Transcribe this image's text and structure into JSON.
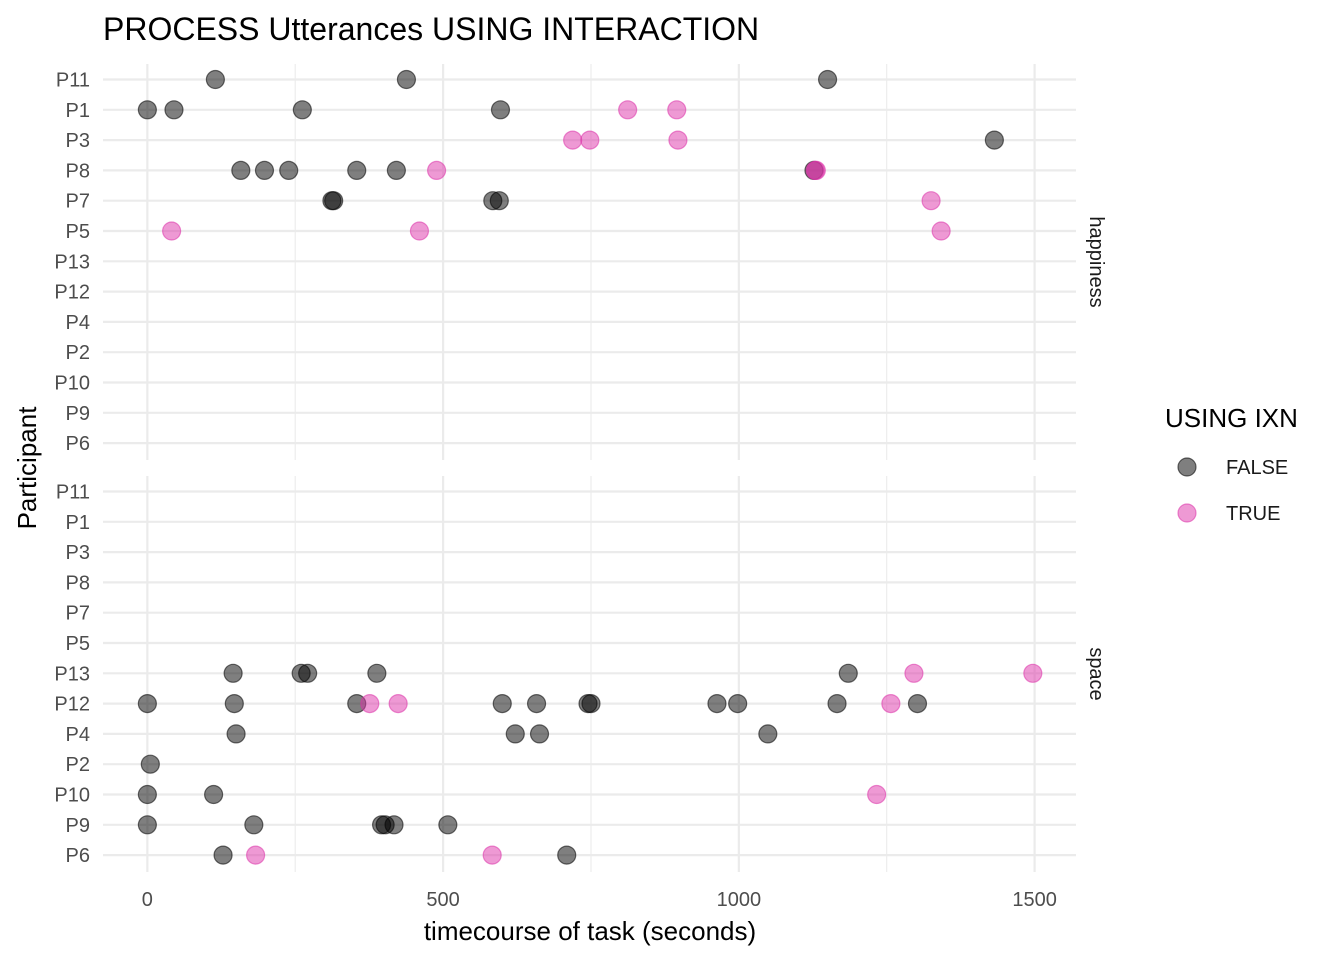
{
  "chart_data": {
    "type": "scatter",
    "title": "PROCESS Utterances USING INTERACTION",
    "xlabel": "timecourse of task (seconds)",
    "ylabel": "Participant",
    "xlim": [
      -75,
      1570
    ],
    "x_ticks": [
      0,
      500,
      1000,
      1500
    ],
    "participants": [
      "P11",
      "P1",
      "P3",
      "P8",
      "P7",
      "P5",
      "P13",
      "P12",
      "P4",
      "P2",
      "P10",
      "P9",
      "P6"
    ],
    "grid": true,
    "legend": {
      "title": "USING IXN",
      "placement": "right",
      "entries": [
        {
          "label": "FALSE",
          "color": "#000000"
        },
        {
          "label": "TRUE",
          "color": "#dd33aa"
        }
      ]
    },
    "point_opacity": 0.5,
    "facets": [
      {
        "label": "happiness",
        "points": [
          {
            "p": "P11",
            "x": 115,
            "ixn": false
          },
          {
            "p": "P11",
            "x": 438,
            "ixn": false
          },
          {
            "p": "P11",
            "x": 1150,
            "ixn": false
          },
          {
            "p": "P1",
            "x": 0,
            "ixn": false
          },
          {
            "p": "P1",
            "x": 45,
            "ixn": false
          },
          {
            "p": "P1",
            "x": 262,
            "ixn": false
          },
          {
            "p": "P1",
            "x": 597,
            "ixn": false
          },
          {
            "p": "P1",
            "x": 812,
            "ixn": true
          },
          {
            "p": "P1",
            "x": 895,
            "ixn": true
          },
          {
            "p": "P3",
            "x": 719,
            "ixn": true
          },
          {
            "p": "P3",
            "x": 748,
            "ixn": true
          },
          {
            "p": "P3",
            "x": 897,
            "ixn": true
          },
          {
            "p": "P3",
            "x": 1432,
            "ixn": false
          },
          {
            "p": "P8",
            "x": 158,
            "ixn": false
          },
          {
            "p": "P8",
            "x": 198,
            "ixn": false
          },
          {
            "p": "P8",
            "x": 239,
            "ixn": false
          },
          {
            "p": "P8",
            "x": 354,
            "ixn": false
          },
          {
            "p": "P8",
            "x": 421,
            "ixn": false
          },
          {
            "p": "P8",
            "x": 489,
            "ixn": true
          },
          {
            "p": "P8",
            "x": 1127,
            "ixn": false
          },
          {
            "p": "P8",
            "x": 1129,
            "ixn": true
          },
          {
            "p": "P8",
            "x": 1131,
            "ixn": true
          },
          {
            "p": "P7",
            "x": 312,
            "ixn": false
          },
          {
            "p": "P7",
            "x": 315,
            "ixn": false
          },
          {
            "p": "P7",
            "x": 584,
            "ixn": false
          },
          {
            "p": "P7",
            "x": 595,
            "ixn": false
          },
          {
            "p": "P7",
            "x": 1325,
            "ixn": true
          },
          {
            "p": "P5",
            "x": 41,
            "ixn": true
          },
          {
            "p": "P5",
            "x": 460,
            "ixn": true
          },
          {
            "p": "P5",
            "x": 1342,
            "ixn": true
          }
        ]
      },
      {
        "label": "space",
        "points": [
          {
            "p": "P13",
            "x": 145,
            "ixn": false
          },
          {
            "p": "P13",
            "x": 260,
            "ixn": false
          },
          {
            "p": "P13",
            "x": 271,
            "ixn": false
          },
          {
            "p": "P13",
            "x": 388,
            "ixn": false
          },
          {
            "p": "P13",
            "x": 1185,
            "ixn": false
          },
          {
            "p": "P13",
            "x": 1296,
            "ixn": true
          },
          {
            "p": "P13",
            "x": 1497,
            "ixn": true
          },
          {
            "p": "P12",
            "x": 0,
            "ixn": false
          },
          {
            "p": "P12",
            "x": 147,
            "ixn": false
          },
          {
            "p": "P12",
            "x": 354,
            "ixn": false
          },
          {
            "p": "P12",
            "x": 376,
            "ixn": true
          },
          {
            "p": "P12",
            "x": 424,
            "ixn": true
          },
          {
            "p": "P12",
            "x": 600,
            "ixn": false
          },
          {
            "p": "P12",
            "x": 658,
            "ixn": false
          },
          {
            "p": "P12",
            "x": 745,
            "ixn": false
          },
          {
            "p": "P12",
            "x": 750,
            "ixn": false
          },
          {
            "p": "P12",
            "x": 963,
            "ixn": false
          },
          {
            "p": "P12",
            "x": 998,
            "ixn": false
          },
          {
            "p": "P12",
            "x": 1166,
            "ixn": false
          },
          {
            "p": "P12",
            "x": 1257,
            "ixn": true
          },
          {
            "p": "P12",
            "x": 1302,
            "ixn": false
          },
          {
            "p": "P4",
            "x": 150,
            "ixn": false
          },
          {
            "p": "P4",
            "x": 622,
            "ixn": false
          },
          {
            "p": "P4",
            "x": 663,
            "ixn": false
          },
          {
            "p": "P4",
            "x": 1049,
            "ixn": false
          },
          {
            "p": "P2",
            "x": 5,
            "ixn": false
          },
          {
            "p": "P10",
            "x": 0,
            "ixn": false
          },
          {
            "p": "P10",
            "x": 112,
            "ixn": false
          },
          {
            "p": "P10",
            "x": 1233,
            "ixn": true
          },
          {
            "p": "P9",
            "x": 0,
            "ixn": false
          },
          {
            "p": "P9",
            "x": 180,
            "ixn": false
          },
          {
            "p": "P9",
            "x": 396,
            "ixn": false
          },
          {
            "p": "P9",
            "x": 402,
            "ixn": false
          },
          {
            "p": "P9",
            "x": 417,
            "ixn": false
          },
          {
            "p": "P9",
            "x": 508,
            "ixn": false
          },
          {
            "p": "P6",
            "x": 128,
            "ixn": false
          },
          {
            "p": "P6",
            "x": 183,
            "ixn": true
          },
          {
            "p": "P6",
            "x": 583,
            "ixn": true
          },
          {
            "p": "P6",
            "x": 709,
            "ixn": false
          }
        ]
      }
    ]
  }
}
